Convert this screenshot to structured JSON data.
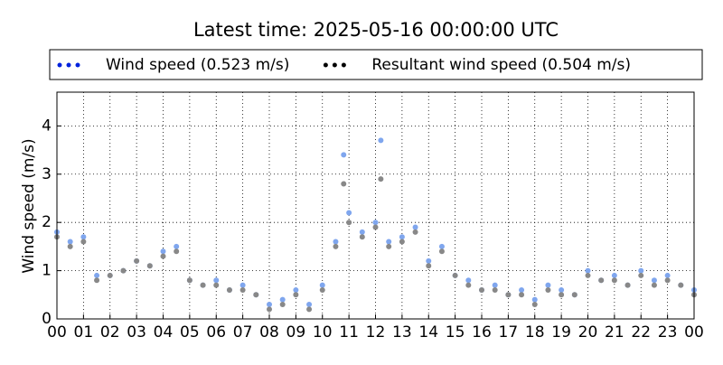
{
  "chart_data": {
    "type": "scatter",
    "title": "Latest time: 2025-05-16 00:00:00 UTC",
    "ylabel": "Wind speed (m/s)",
    "x": [
      0,
      0.5,
      1,
      1.5,
      2,
      2.5,
      3,
      3.5,
      4,
      4.5,
      5,
      5.5,
      6,
      6.5,
      7,
      7.5,
      8,
      8.5,
      9,
      9.5,
      10,
      10.5,
      10.8,
      11,
      11.5,
      12,
      12.2,
      12.5,
      13,
      13.5,
      14,
      14.5,
      15,
      15.5,
      16,
      16.5,
      17,
      17.5,
      18,
      18.5,
      19,
      19.5,
      20,
      20.5,
      21,
      21.5,
      22,
      22.5,
      23,
      23.5,
      24
    ],
    "series": [
      {
        "name": "Wind speed (0.523 m/s)",
        "color": "#0022dd",
        "marker_color": "#7fa6ee",
        "values": [
          1.8,
          1.6,
          1.7,
          0.9,
          0.9,
          1.0,
          1.2,
          1.1,
          1.4,
          1.5,
          0.8,
          0.7,
          0.8,
          0.6,
          0.7,
          0.5,
          0.3,
          0.4,
          0.6,
          0.3,
          0.7,
          1.6,
          3.4,
          2.2,
          1.8,
          2.0,
          3.7,
          1.6,
          1.7,
          1.9,
          1.2,
          1.5,
          0.9,
          0.8,
          0.6,
          0.7,
          0.5,
          0.6,
          0.4,
          0.7,
          0.6,
          0.5,
          1.0,
          0.8,
          0.9,
          0.7,
          1.0,
          0.8,
          0.9,
          0.7,
          0.6
        ]
      },
      {
        "name": "Resultant wind speed (0.504 m/s)",
        "color": "#000000",
        "marker_color": "#888888",
        "values": [
          1.7,
          1.5,
          1.6,
          0.8,
          0.9,
          1.0,
          1.2,
          1.1,
          1.3,
          1.4,
          0.8,
          0.7,
          0.7,
          0.6,
          0.6,
          0.5,
          0.2,
          0.3,
          0.5,
          0.2,
          0.6,
          1.5,
          2.8,
          2.0,
          1.7,
          1.9,
          2.9,
          1.5,
          1.6,
          1.8,
          1.1,
          1.4,
          0.9,
          0.7,
          0.6,
          0.6,
          0.5,
          0.5,
          0.3,
          0.6,
          0.5,
          0.5,
          0.9,
          0.8,
          0.8,
          0.7,
          0.9,
          0.7,
          0.8,
          0.7,
          0.5
        ]
      }
    ],
    "xlim": [
      0,
      24
    ],
    "xticks": [
      {
        "value": 0,
        "label": "00"
      },
      {
        "value": 1,
        "label": "01"
      },
      {
        "value": 2,
        "label": "02"
      },
      {
        "value": 3,
        "label": "03"
      },
      {
        "value": 4,
        "label": "04"
      },
      {
        "value": 5,
        "label": "05"
      },
      {
        "value": 6,
        "label": "06"
      },
      {
        "value": 7,
        "label": "07"
      },
      {
        "value": 8,
        "label": "08"
      },
      {
        "value": 9,
        "label": "09"
      },
      {
        "value": 10,
        "label": "10"
      },
      {
        "value": 11,
        "label": "11"
      },
      {
        "value": 12,
        "label": "12"
      },
      {
        "value": 13,
        "label": "13"
      },
      {
        "value": 14,
        "label": "14"
      },
      {
        "value": 15,
        "label": "15"
      },
      {
        "value": 16,
        "label": "16"
      },
      {
        "value": 17,
        "label": "17"
      },
      {
        "value": 18,
        "label": "18"
      },
      {
        "value": 19,
        "label": "19"
      },
      {
        "value": 20,
        "label": "20"
      },
      {
        "value": 21,
        "label": "21"
      },
      {
        "value": 22,
        "label": "22"
      },
      {
        "value": 23,
        "label": "23"
      },
      {
        "value": 24,
        "label": "00"
      }
    ],
    "ylim": [
      0,
      4.7
    ],
    "yticks": [
      0,
      1,
      2,
      3,
      4
    ],
    "grid": true
  }
}
